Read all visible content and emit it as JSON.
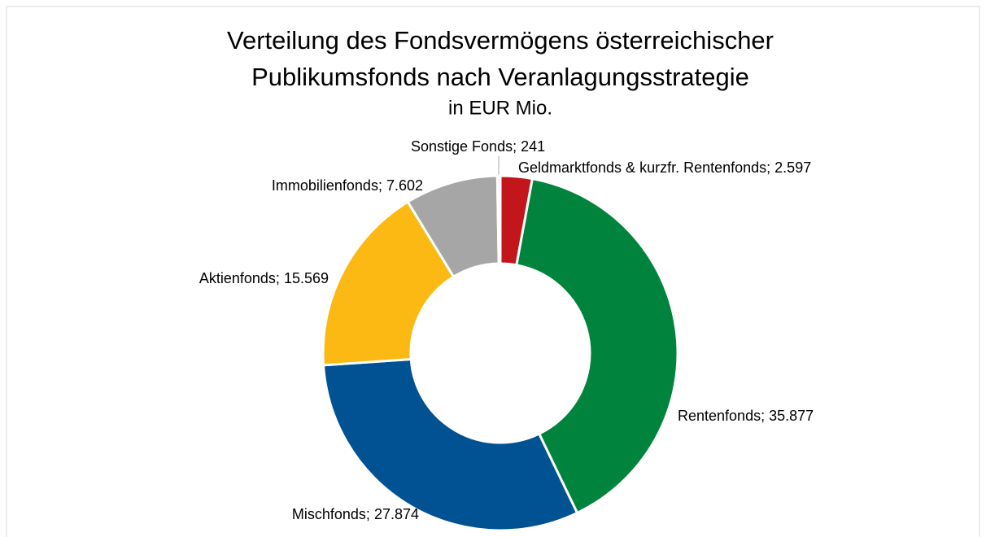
{
  "chart_data": {
    "type": "donut",
    "title": [
      "Verteilung des Fondsvermögens österreichischer",
      "Publikumsfonds nach Veranlagungsstrategie"
    ],
    "subtitle": "in EUR Mio.",
    "categories": [
      "Geldmarktfonds & kurzfr. Rentenfonds",
      "Rentenfonds",
      "Mischfonds",
      "Aktienfonds",
      "Immobilienfonds",
      "Sonstige Fonds"
    ],
    "values": [
      2597,
      35877,
      27874,
      15569,
      7602,
      241
    ],
    "value_labels": [
      "2.597",
      "35.877",
      "27.874",
      "15.569",
      "7.602",
      "241"
    ],
    "label_separator": "; ",
    "colors": [
      "#c3161c",
      "#00843d",
      "#005293",
      "#fdb913",
      "#a6a6a6",
      "#d9d9d9"
    ]
  }
}
